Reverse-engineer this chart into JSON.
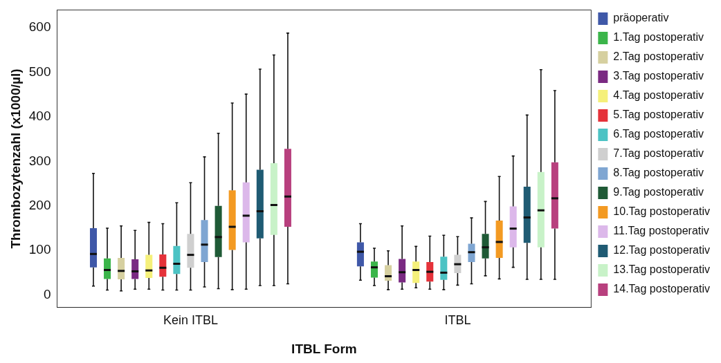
{
  "chart_data": {
    "type": "box",
    "xlabel": "ITBL Form",
    "ylabel": "Thrombozytenzahl (x1000/µl)",
    "categories": [
      "Kein ITBL",
      "ITBL"
    ],
    "ylim": [
      -28,
      640
    ],
    "yticks": [
      0,
      100,
      200,
      300,
      400,
      500,
      600
    ],
    "grid": false,
    "legend": "right",
    "series": [
      {
        "name": "präoperativ",
        "color": "#3f58a8",
        "boxes": [
          {
            "low": 20,
            "q1": 62,
            "median": 92,
            "q3": 150,
            "high": 273
          },
          {
            "low": 33,
            "q1": 64,
            "median": 97,
            "q3": 118,
            "high": 160
          }
        ]
      },
      {
        "name": "1.Tag postoperativ",
        "color": "#3bb54a",
        "boxes": [
          {
            "low": 11,
            "q1": 36,
            "median": 56,
            "q3": 82,
            "high": 150
          },
          {
            "low": 21,
            "q1": 39,
            "median": 62,
            "q3": 75,
            "high": 105
          }
        ]
      },
      {
        "name": "2.Tag postoperativ",
        "color": "#d6d0a0",
        "boxes": [
          {
            "low": 9,
            "q1": 35,
            "median": 54,
            "q3": 83,
            "high": 155
          },
          {
            "low": 12,
            "q1": 32,
            "median": 42,
            "q3": 67,
            "high": 99
          }
        ]
      },
      {
        "name": "3.Tag postoperativ",
        "color": "#7a2a82",
        "boxes": [
          {
            "low": 13,
            "q1": 36,
            "median": 53,
            "q3": 80,
            "high": 145
          },
          {
            "low": 13,
            "q1": 28,
            "median": 51,
            "q3": 81,
            "high": 155
          }
        ]
      },
      {
        "name": "4.Tag postoperativ",
        "color": "#f5f07a",
        "boxes": [
          {
            "low": 13,
            "q1": 38,
            "median": 55,
            "q3": 90,
            "high": 163
          },
          {
            "low": 16,
            "q1": 27,
            "median": 56,
            "q3": 75,
            "high": 109
          }
        ]
      },
      {
        "name": "5.Tag postoperativ",
        "color": "#e5323a",
        "boxes": [
          {
            "low": 11,
            "q1": 41,
            "median": 61,
            "q3": 91,
            "high": 160
          },
          {
            "low": 13,
            "q1": 30,
            "median": 52,
            "q3": 74,
            "high": 132
          }
        ]
      },
      {
        "name": "6.Tag postoperativ",
        "color": "#4cc3c4",
        "boxes": [
          {
            "low": 11,
            "q1": 47,
            "median": 70,
            "q3": 110,
            "high": 207
          },
          {
            "low": 12,
            "q1": 34,
            "median": 50,
            "q3": 86,
            "high": 134
          }
        ]
      },
      {
        "name": "7.Tag postoperativ",
        "color": "#cfcfcf",
        "boxes": [
          {
            "low": 11,
            "q1": 61,
            "median": 90,
            "q3": 137,
            "high": 252
          },
          {
            "low": 22,
            "q1": 49,
            "median": 69,
            "q3": 90,
            "high": 131
          }
        ]
      },
      {
        "name": "8.Tag postoperativ",
        "color": "#7fa6d2",
        "boxes": [
          {
            "low": 18,
            "q1": 74,
            "median": 113,
            "q3": 168,
            "high": 310
          },
          {
            "low": 25,
            "q1": 74,
            "median": 96,
            "q3": 115,
            "high": 173
          }
        ]
      },
      {
        "name": "9.Tag postoperativ",
        "color": "#1f5a36",
        "boxes": [
          {
            "low": 14,
            "q1": 85,
            "median": 130,
            "q3": 200,
            "high": 363
          },
          {
            "low": 43,
            "q1": 82,
            "median": 107,
            "q3": 137,
            "high": 210
          }
        ]
      },
      {
        "name": "10.Tag postoperativ",
        "color": "#f39a22",
        "boxes": [
          {
            "low": 12,
            "q1": 101,
            "median": 153,
            "q3": 235,
            "high": 431
          },
          {
            "low": 36,
            "q1": 83,
            "median": 119,
            "q3": 167,
            "high": 266
          }
        ]
      },
      {
        "name": "11.Tag postoperativ",
        "color": "#dcb8ea",
        "boxes": [
          {
            "low": 13,
            "q1": 118,
            "median": 178,
            "q3": 253,
            "high": 451
          },
          {
            "low": 62,
            "q1": 107,
            "median": 149,
            "q3": 199,
            "high": 312
          }
        ]
      },
      {
        "name": "12.Tag postoperativ",
        "color": "#1f5b73",
        "boxes": [
          {
            "low": 21,
            "q1": 127,
            "median": 188,
            "q3": 281,
            "high": 507
          },
          {
            "low": 35,
            "q1": 117,
            "median": 174,
            "q3": 243,
            "high": 404
          }
        ]
      },
      {
        "name": "13.Tag postoperativ",
        "color": "#c8f2c8",
        "boxes": [
          {
            "low": 21,
            "q1": 135,
            "median": 202,
            "q3": 296,
            "high": 539
          },
          {
            "low": 35,
            "q1": 107,
            "median": 190,
            "q3": 276,
            "high": 506
          }
        ]
      },
      {
        "name": "14.Tag postoperativ",
        "color": "#b8407e",
        "boxes": [
          {
            "low": 25,
            "q1": 153,
            "median": 221,
            "q3": 328,
            "high": 588
          },
          {
            "low": 35,
            "q1": 149,
            "median": 217,
            "q3": 298,
            "high": 459
          }
        ]
      }
    ]
  }
}
